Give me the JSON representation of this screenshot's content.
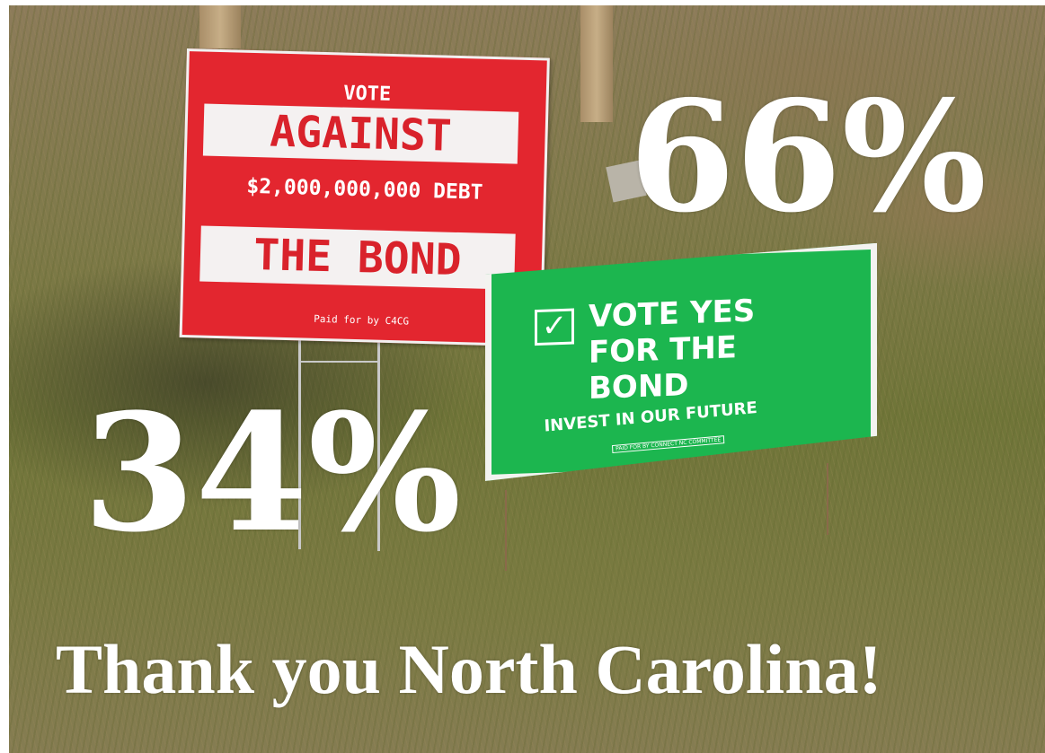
{
  "red_sign": {
    "vote": "VOTE",
    "against": "AGAINST",
    "debt": "$2,000,000,000 DEBT",
    "the_bond": "THE BOND",
    "paid_for": "Paid for by C4CG"
  },
  "green_sign": {
    "check": "✓",
    "line1": "VOTE YES",
    "line2": "FOR THE",
    "line3": "BOND",
    "invest": "INVEST IN OUR FUTURE",
    "paid_for": "PAID FOR BY CONNECT NC COMMITTEE"
  },
  "overlay": {
    "yes_percent": "66%",
    "no_percent": "34%",
    "thanks": "Thank you North Carolina!"
  },
  "colors": {
    "red_sign": "#e3262f",
    "green_sign": "#1cb64f",
    "overlay_text": "#ffffff"
  }
}
